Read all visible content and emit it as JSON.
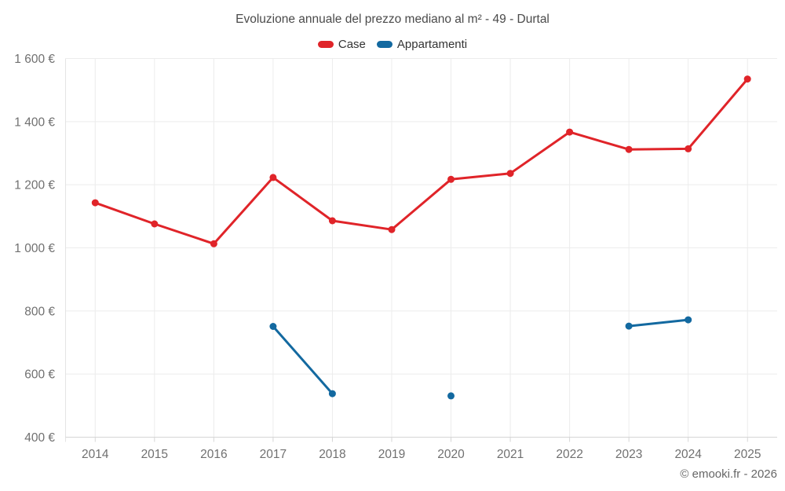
{
  "title": "Evoluzione annuale del prezzo mediano al m² - 49 - Durtal",
  "copyright": "© emooki.fr - 2026",
  "colors": {
    "case_red": "#e02429",
    "appartamenti_blue": "#1369a0",
    "gridline": "#ececec",
    "axis_line": "#d6d6d6",
    "plot_border": "#e4e4e4",
    "tick_label": "#707070",
    "title_text": "#4a4a4a",
    "legend_text": "#333333",
    "copyright_text": "#666666"
  },
  "chart_data": {
    "type": "line",
    "categories": [
      "2014",
      "2015",
      "2016",
      "2017",
      "2018",
      "2019",
      "2020",
      "2021",
      "2022",
      "2023",
      "2024",
      "2025"
    ],
    "series": [
      {
        "name": "Case",
        "color": "#e02429",
        "values": [
          1143,
          1076,
          1013,
          1223,
          1086,
          1058,
          1217,
          1236,
          1367,
          1312,
          1314,
          1535
        ]
      },
      {
        "name": "Appartamenti",
        "color": "#1369a0",
        "values": [
          null,
          null,
          null,
          751,
          538,
          null,
          531,
          null,
          null,
          752,
          772,
          null
        ]
      }
    ],
    "ylim": [
      400,
      1600
    ],
    "ytick_step": 200,
    "ytick_labels": [
      "400 €",
      "600 €",
      "800 €",
      "1 000 €",
      "1 200 €",
      "1 400 €",
      "1 600 €"
    ],
    "ylabel": "",
    "xlabel": "",
    "grid": true,
    "legend_position": "top",
    "marker_radius": 4.5,
    "line_width": 3
  }
}
